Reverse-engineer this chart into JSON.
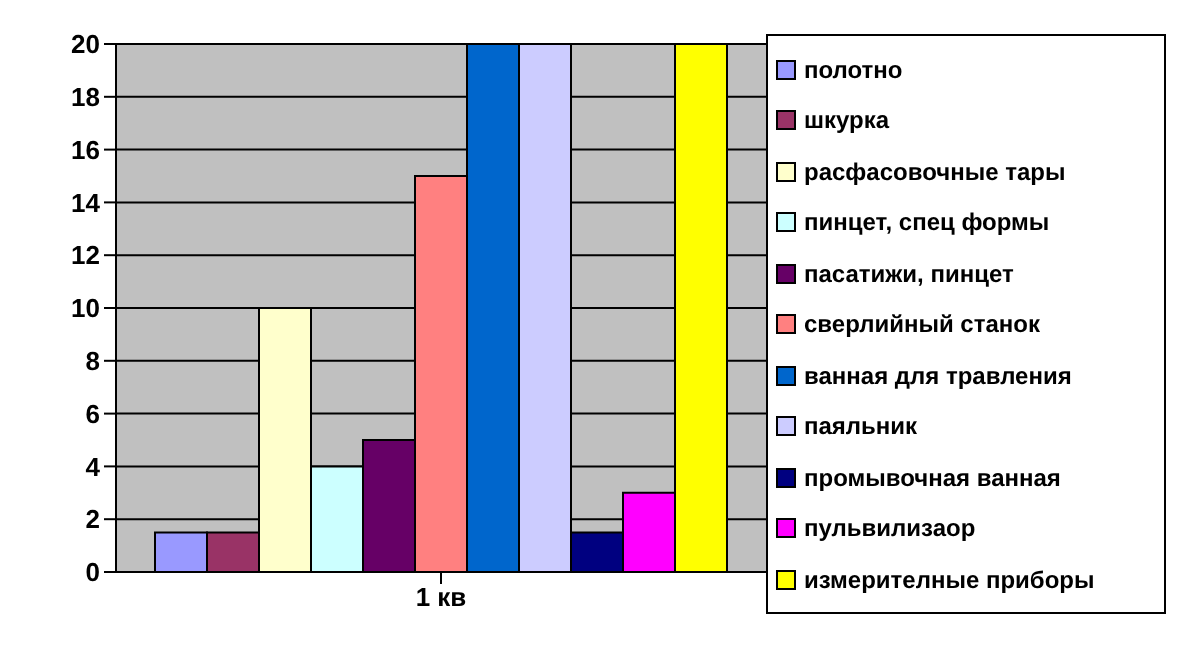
{
  "chart_data": {
    "type": "bar",
    "categories": [
      "1 кв"
    ],
    "series": [
      {
        "name": "полотно",
        "color": "#9999ff",
        "values": [
          1.5
        ]
      },
      {
        "name": "шкурка",
        "color": "#993366",
        "values": [
          1.5
        ]
      },
      {
        "name": "расфасовочные тары",
        "color": "#ffffcc",
        "values": [
          10
        ]
      },
      {
        "name": "пинцет, спец формы",
        "color": "#ccffff",
        "values": [
          4
        ]
      },
      {
        "name": "пасатижи, пинцет",
        "color": "#660066",
        "values": [
          5
        ]
      },
      {
        "name": "сверлийный станок",
        "color": "#ff8080",
        "values": [
          15
        ]
      },
      {
        "name": "ванная для травления",
        "color": "#0066cc",
        "values": [
          20
        ]
      },
      {
        "name": "паяльник",
        "color": "#ccccff",
        "values": [
          20
        ]
      },
      {
        "name": "промывочная ванная",
        "color": "#000080",
        "values": [
          1.5
        ]
      },
      {
        "name": "пульвилизаор",
        "color": "#ff00ff",
        "values": [
          3
        ]
      },
      {
        "name": "измерителные приборы",
        "color": "#ffff00",
        "values": [
          20
        ]
      }
    ],
    "ylim": [
      0,
      20
    ],
    "yticks": [
      0,
      2,
      4,
      6,
      8,
      10,
      12,
      14,
      16,
      18,
      20
    ],
    "grid": "y",
    "legend": "right"
  }
}
